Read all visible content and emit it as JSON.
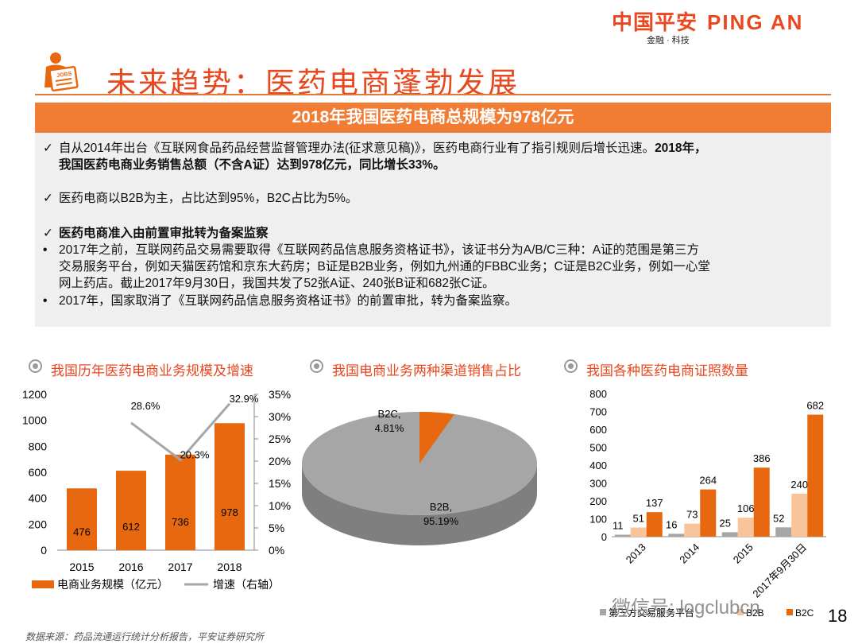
{
  "logo": {
    "brand_cn": "中国平安",
    "brand_en": "PING AN",
    "tagline": "金融 · 科技"
  },
  "title": "未来趋势：医药电商蓬勃发展",
  "title_icon_text": "JOBS",
  "banner": "2018年我国医药电商总规模为978亿元",
  "bullets": {
    "b1_line1": "自从2014年出台《互联网食品药品经营监督管理办法(征求意见稿)》，医药电商行业有了指引规则后增长迅速。",
    "b1_line1_bold": "2018年，",
    "b1_line2_bold": "我国医药电商业务销售总额（不含A证）达到978亿元，同比增长33%。",
    "b2": "医药电商以B2B为主，占比达到95%，B2C占比为5%。",
    "b3_bold": "医药电商准入由前置审批转为备案监察",
    "sub1_line1": "2017年之前，互联网药品交易需要取得《互联网药品信息服务资格证书》，该证书分为A/B/C三种：A证的范围是第三方",
    "sub1_line2": "交易服务平台，例如天猫医药馆和京东大药房；B证是B2B业务，例如九州通的FBBC业务；C证是B2C业务，例如一心堂",
    "sub1_line3": "网上药店。截止2017年9月30日，我国共发了52张A证、240张B证和682张C证。",
    "sub2": "2017年，国家取消了《互联网药品信息服务资格证书》的前置审批，转为备案监察。"
  },
  "chart_titles": {
    "c1": "我国历年医药电商业务规模及增速",
    "c2": "我国电商业务两种渠道销售占比",
    "c3": "我国各种医药电商证照数量"
  },
  "chart_data": [
    {
      "type": "bar",
      "categories": [
        "2015",
        "2016",
        "2017",
        "2018"
      ],
      "series": [
        {
          "name": "电商业务规模（亿元）",
          "type": "bar",
          "axis": "left",
          "values": [
            476,
            612,
            736,
            978
          ],
          "labels": [
            "476",
            "612",
            "736",
            "978"
          ],
          "color": "#e8680f"
        },
        {
          "name": "增速（右轴）",
          "type": "line",
          "axis": "right",
          "values": [
            null,
            28.6,
            20.3,
            32.9
          ],
          "labels": [
            "",
            "28.6%",
            "20.3%",
            "32.9%"
          ],
          "color": "#a6a6a6"
        }
      ],
      "ylim": [
        0,
        1200
      ],
      "yticks": [
        "0",
        "200",
        "400",
        "600",
        "800",
        "1000",
        "1200"
      ],
      "y2lim": [
        0,
        35
      ],
      "y2ticks": [
        "0%",
        "5%",
        "10%",
        "15%",
        "20%",
        "25%",
        "30%",
        "35%"
      ],
      "legend_placement": "bottom"
    },
    {
      "type": "pie",
      "slices": [
        {
          "name": "B2C",
          "value": 4.81,
          "label": "4.81%",
          "color": "#e8680f"
        },
        {
          "name": "B2B",
          "value": 95.19,
          "label": "95.19%",
          "color": "#a6a6a6"
        }
      ]
    },
    {
      "type": "bar",
      "categories": [
        "2013",
        "2014",
        "2015",
        "2017年9月30日"
      ],
      "series": [
        {
          "name": "第三方交易服务平台",
          "values": [
            11,
            16,
            25,
            52
          ],
          "color": "#a6a6a6"
        },
        {
          "name": "B2B",
          "values": [
            51,
            73,
            106,
            240
          ],
          "color": "#f9c49a"
        },
        {
          "name": "B2C",
          "values": [
            137,
            264,
            386,
            682
          ],
          "color": "#e8680f"
        }
      ],
      "ylim": [
        0,
        800
      ],
      "yticks": [
        "0",
        "100",
        "200",
        "300",
        "400",
        "500",
        "600",
        "700",
        "800"
      ],
      "legend_placement": "bottom"
    }
  ],
  "legend3_short": [
    "第三方交易服务平台",
    "B2B",
    "B2C"
  ],
  "watermark": "微信号: logclubcn",
  "source": "数据来源：药品流通运行统计分析报告，平安证券研究所",
  "page_number": "18"
}
